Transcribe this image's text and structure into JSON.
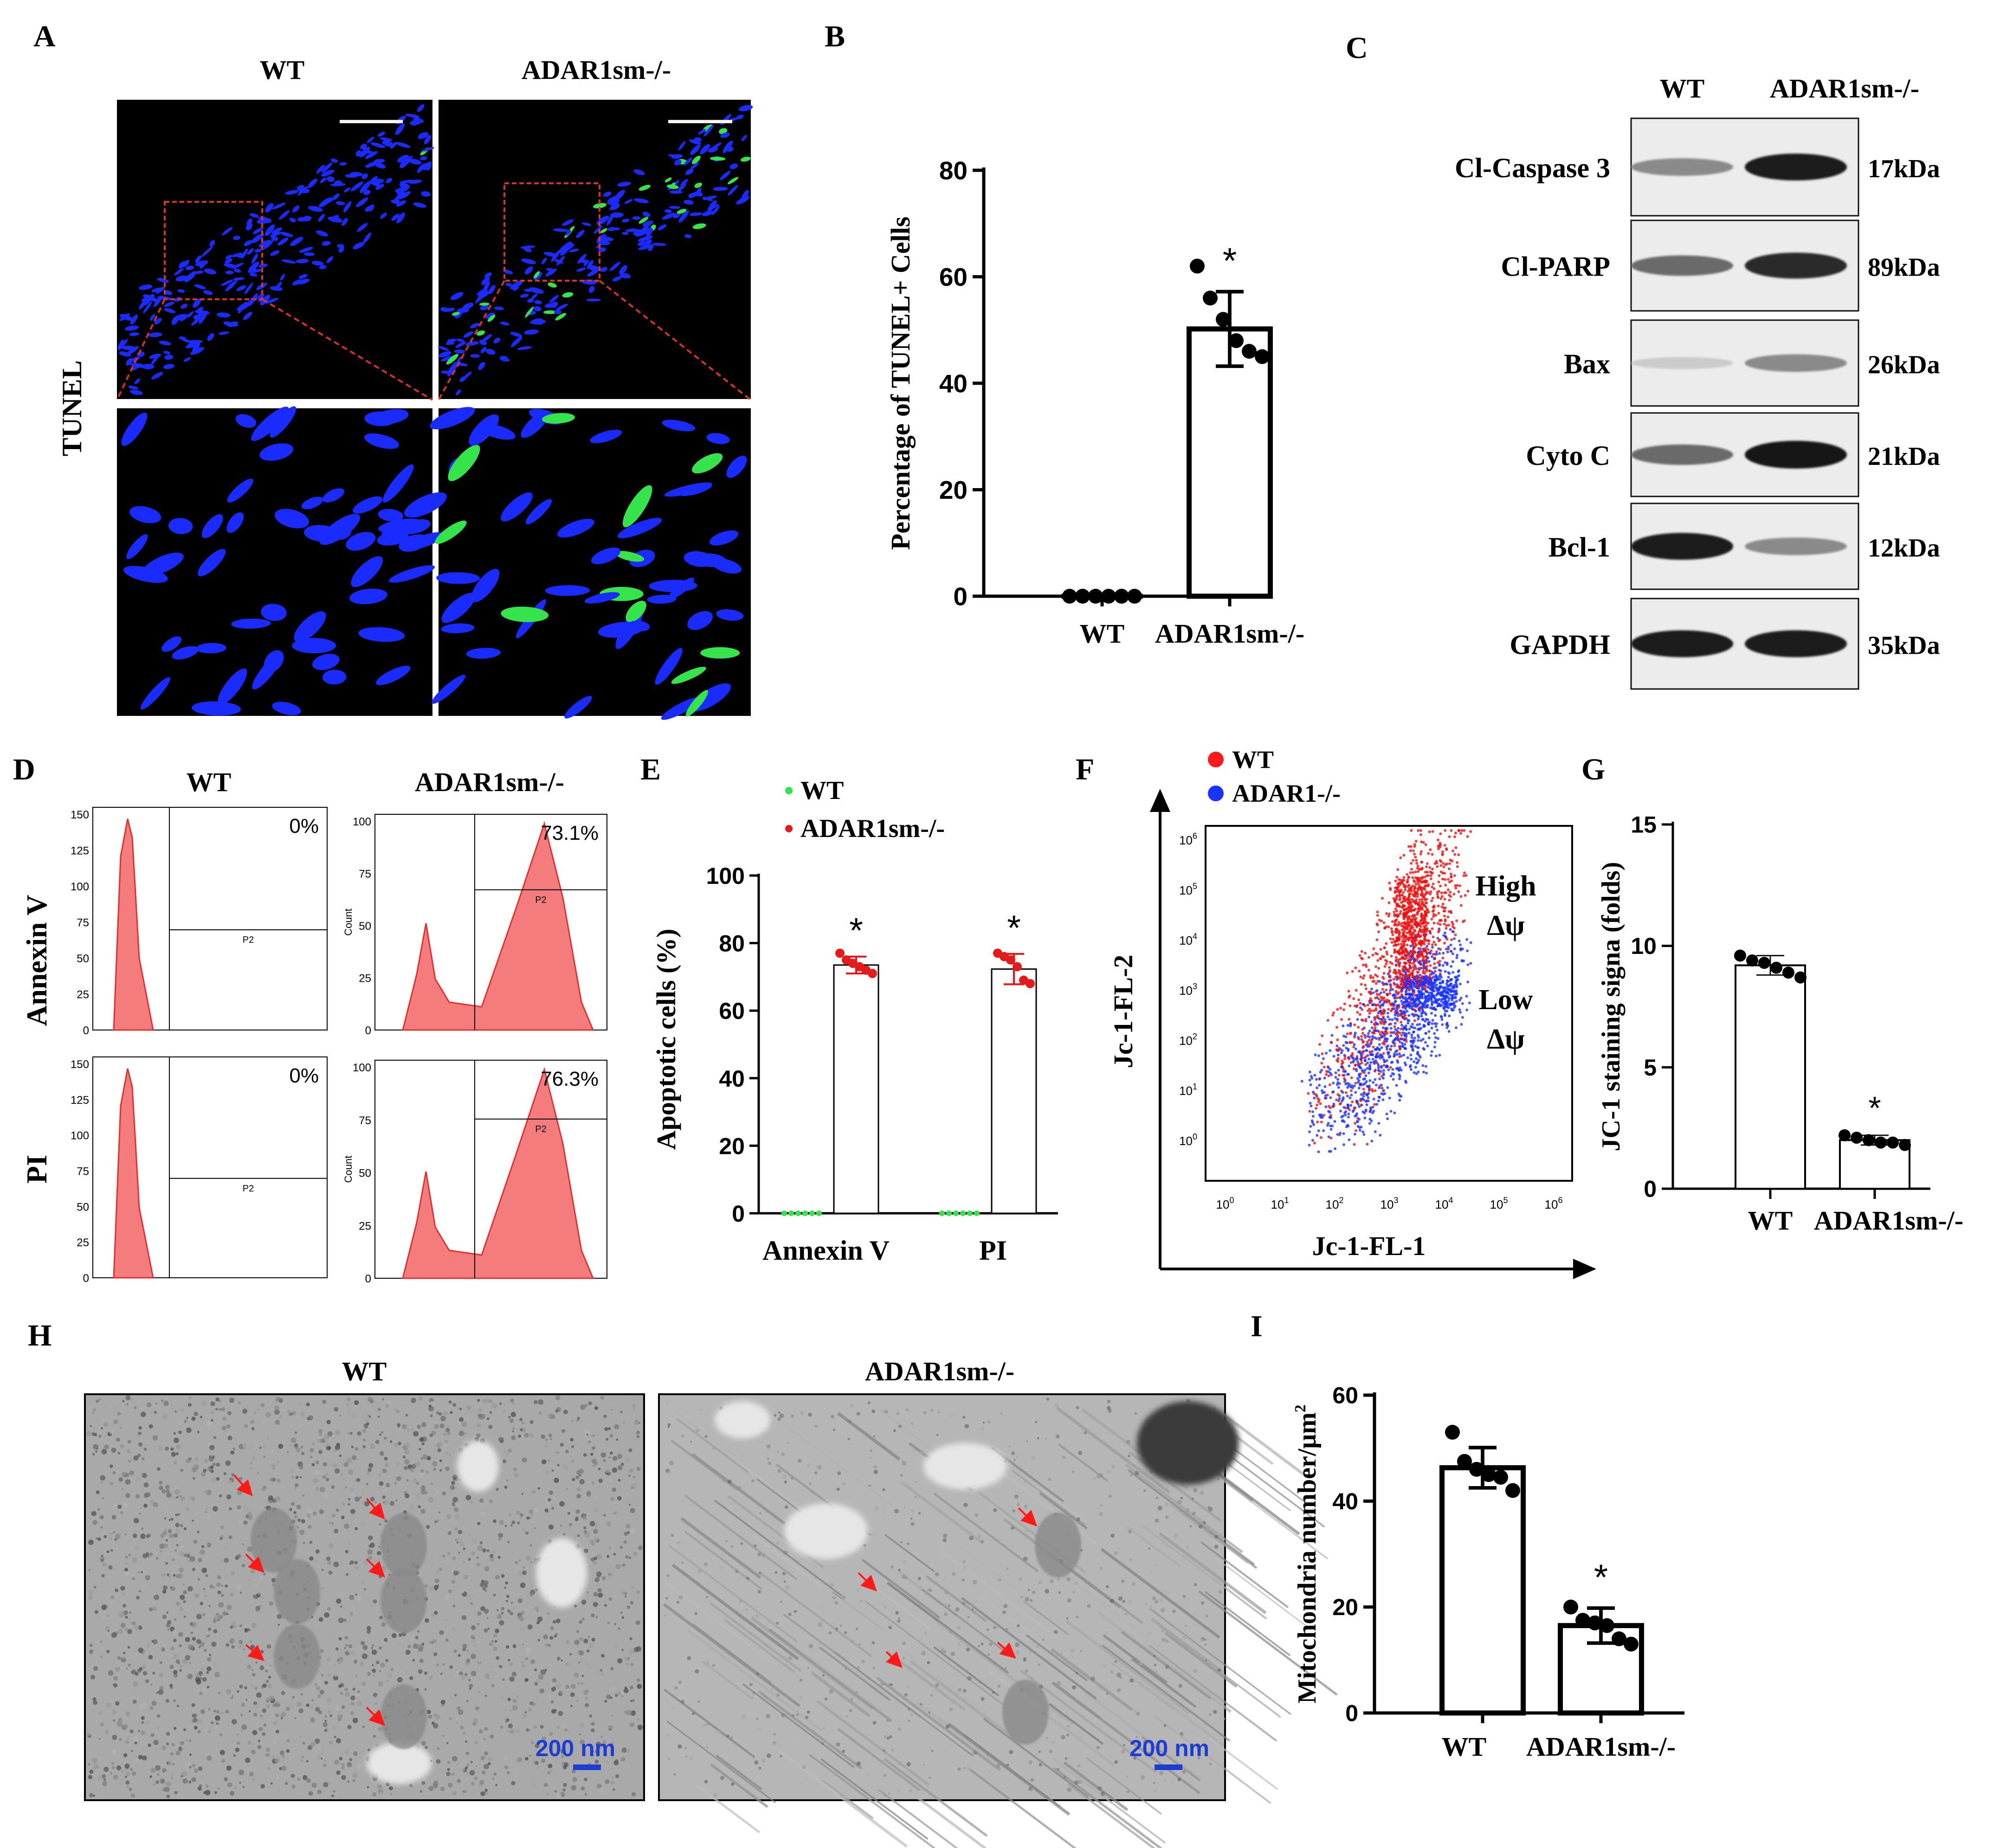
{
  "panels": {
    "A": {
      "label": "A",
      "col_wt": "WT",
      "col_ko": "ADAR1sm-/-",
      "row_label": "TUNEL"
    },
    "B": {
      "label": "B",
      "chart_ref": 0
    },
    "C": {
      "label": "C",
      "col_wt": "WT",
      "col_ko": "ADAR1sm-/-",
      "proteins": [
        {
          "name": "Cl-Caspase 3",
          "mw": "17kDa",
          "wt": 0.45,
          "ko": 0.95
        },
        {
          "name": "Cl-PARP",
          "mw": "89kDa",
          "wt": 0.6,
          "ko": 0.9
        },
        {
          "name": "Bax",
          "mw": "26kDa",
          "wt": 0.15,
          "ko": 0.45
        },
        {
          "name": "Cyto C",
          "mw": "21kDa",
          "wt": 0.6,
          "ko": 1.0
        },
        {
          "name": "Bcl-1",
          "mw": "12kDa",
          "wt": 0.95,
          "ko": 0.45
        },
        {
          "name": "GAPDH",
          "mw": "35kDa",
          "wt": 0.95,
          "ko": 0.95
        }
      ]
    },
    "D": {
      "label": "D",
      "col_wt": "WT",
      "col_ko": "ADAR1sm-/-",
      "row1": "Annexin V",
      "row2": "PI",
      "gate": "P2",
      "count_label": "Count",
      "wt_row1_pct": "0%",
      "ko_row1_pct": "73.1%",
      "wt_row2_pct": "0%",
      "ko_row2_pct": "76.3%",
      "wt_ticks": [
        "150",
        "125",
        "100",
        "75",
        "50",
        "25",
        "0"
      ],
      "ko_ticks": [
        "100",
        "75",
        "50",
        "25",
        "0"
      ]
    },
    "E": {
      "label": "E",
      "chart_ref": 1
    },
    "F": {
      "label": "F",
      "legend_wt": "WT",
      "legend_ko": "ADAR1-/-",
      "ylabel": "Jc-1-FL-2",
      "xlabel": "Jc-1-FL-1",
      "high": "High",
      "low": "Low",
      "delta_psi": "Δψ",
      "ticks": [
        "6",
        "5",
        "4",
        "3",
        "2",
        "1",
        "0"
      ],
      "tick_base": "10"
    },
    "G": {
      "label": "G",
      "chart_ref": 2
    },
    "H": {
      "label": "H",
      "col_wt": "WT",
      "col_ko": "ADAR1sm-/-",
      "scale_wt": "200 nm",
      "scale_ko": "200 nm"
    },
    "I": {
      "label": "I",
      "chart_ref": 3,
      "ylabel_sup": "2"
    }
  },
  "colors": {
    "dapi": "#1a2bff",
    "tunel": "#35e34a",
    "arrow": "#ff1a1a",
    "hist": "#f47c7c",
    "scale": "#1c3dd4",
    "wt_dot": "#ff1a1a",
    "ko_dot": "#1a33ff"
  },
  "chart_data": [
    {
      "type": "bar",
      "title": "",
      "ylabel": "Percentage of TUNEL+ Cells",
      "xlabel": "",
      "categories": [
        "WT",
        "ADAR1sm-/-"
      ],
      "values": [
        0,
        50.2
      ],
      "errors": [
        0,
        7
      ],
      "points": [
        [
          0,
          0,
          0,
          0,
          0,
          0
        ],
        [
          62,
          56,
          52,
          48,
          46,
          45
        ]
      ],
      "ylim": [
        0,
        80
      ],
      "yticks": [
        "0",
        "20",
        "40",
        "60",
        "80"
      ],
      "significance": [
        "",
        "*"
      ]
    },
    {
      "type": "bar",
      "title": "",
      "ylabel": "Apoptotic cells (%)",
      "xlabel": "",
      "categories": [
        "Annexin V",
        "PI"
      ],
      "series": [
        {
          "name": "WT",
          "values": [
            0,
            0
          ],
          "points": [
            [
              0,
              0,
              0,
              0,
              0,
              0
            ],
            [
              0,
              0,
              0,
              0,
              0,
              0
            ]
          ]
        },
        {
          "name": "ADAR1sm-/-",
          "values": [
            73.5,
            72.3
          ],
          "errors": [
            2.5,
            4.5
          ],
          "points": [
            [
              77,
              75,
              74,
              73,
              72,
              71
            ],
            [
              77,
              76,
              75,
              73,
              69,
              68
            ]
          ]
        }
      ],
      "ylim": [
        0,
        100
      ],
      "yticks": [
        "0",
        "20",
        "40",
        "60",
        "80",
        "100"
      ],
      "significance": [
        "*",
        "*"
      ],
      "legend": "top-left"
    },
    {
      "type": "bar",
      "title": "",
      "ylabel": "JC-1 staining signa (folds)",
      "xlabel": "",
      "categories": [
        "WT",
        "ADAR1sm-/-"
      ],
      "values": [
        9.2,
        2.0
      ],
      "errors": [
        0.4,
        0.2
      ],
      "points": [
        [
          9.6,
          9.4,
          9.3,
          9.1,
          8.9,
          8.7
        ],
        [
          2.2,
          2.1,
          2.0,
          1.9,
          1.9,
          1.8
        ]
      ],
      "ylim": [
        0,
        15
      ],
      "yticks": [
        "0",
        "5",
        "10",
        "15"
      ],
      "significance": [
        "",
        "*"
      ]
    },
    {
      "type": "bar",
      "title": "",
      "ylabel": "Mitochondria number/μm",
      "xlabel": "",
      "categories": [
        "WT",
        "ADAR1sm-/-"
      ],
      "values": [
        46.3,
        16.5
      ],
      "errors": [
        3.8,
        3.3
      ],
      "points": [
        [
          53,
          47.5,
          46,
          45,
          44.5,
          42
        ],
        [
          20,
          17.5,
          17,
          16.5,
          14,
          13
        ]
      ],
      "ylim": [
        0,
        60
      ],
      "yticks": [
        "0",
        "20",
        "40",
        "60"
      ],
      "significance": [
        "",
        "*"
      ]
    }
  ]
}
